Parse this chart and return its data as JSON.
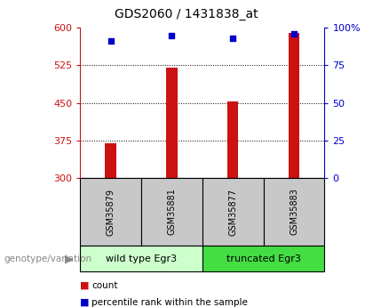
{
  "title": "GDS2060 / 1431838_at",
  "samples": [
    "GSM35879",
    "GSM35881",
    "GSM35877",
    "GSM35883"
  ],
  "bar_values": [
    370,
    520,
    452,
    590
  ],
  "scatter_values": [
    91,
    95,
    93,
    96
  ],
  "ylim_left": [
    300,
    600
  ],
  "ylim_right": [
    0,
    100
  ],
  "yticks_left": [
    300,
    375,
    450,
    525,
    600
  ],
  "yticks_right": [
    0,
    25,
    50,
    75,
    100
  ],
  "bar_color": "#cc1111",
  "scatter_color": "#0000cc",
  "grid_yticks": [
    375,
    450,
    525
  ],
  "groups": [
    {
      "label": "wild type Egr3",
      "indices": [
        0,
        1
      ],
      "color": "#ccffcc"
    },
    {
      "label": "truncated Egr3",
      "indices": [
        2,
        3
      ],
      "color": "#44dd44"
    }
  ],
  "group_label": "genotype/variation",
  "legend_bar_label": "count",
  "legend_scatter_label": "percentile rank within the sample",
  "left_tick_color": "#cc1111",
  "right_tick_color": "#0000cc",
  "plot_bg": "#ffffff",
  "sample_box_color": "#c8c8c8"
}
